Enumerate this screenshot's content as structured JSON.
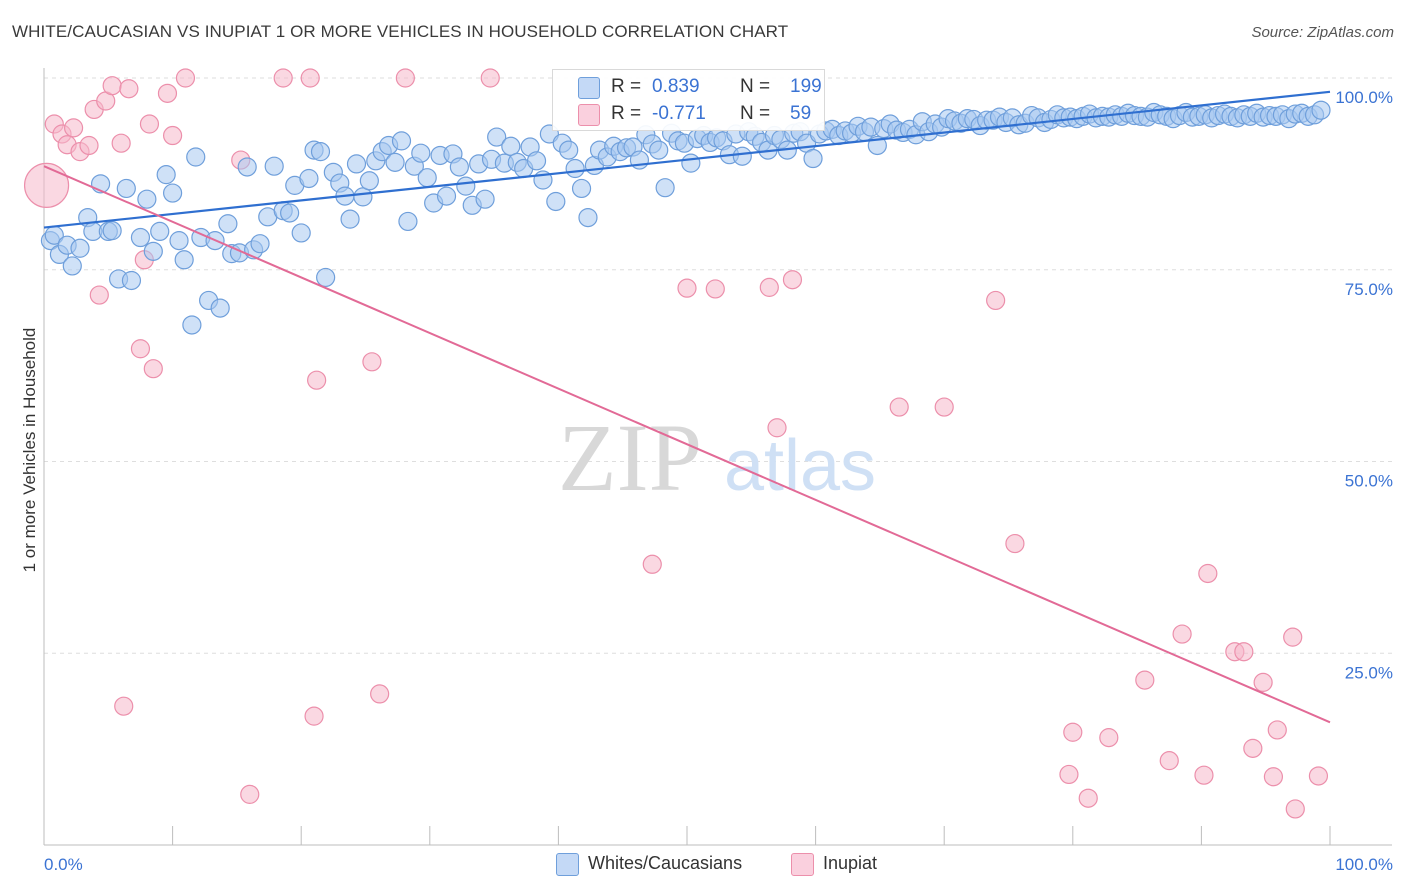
{
  "header": {
    "title": "WHITE/CAUCASIAN VS INUPIAT 1 OR MORE VEHICLES IN HOUSEHOLD CORRELATION CHART",
    "source": "Source: ZipAtlas.com"
  },
  "watermark": {
    "zip": "ZIP",
    "atlas": "atlas"
  },
  "legend": {
    "rows": [
      {
        "r_label": "R =",
        "r_value": "0.839",
        "n_label": "N =",
        "n_value": "199",
        "color": "#a8c8f0"
      },
      {
        "r_label": "R =",
        "r_value": "-0.771",
        "n_label": "N =",
        "n_value": "59",
        "color": "#f6b8cb"
      }
    ]
  },
  "bottom_legend": {
    "blue": "Whites/Caucasians",
    "pink": "Inupiat"
  },
  "chart_data": {
    "type": "scatter",
    "xlabel": "",
    "ylabel": "1 or more Vehicles in Household",
    "xlim": [
      0,
      100
    ],
    "ylim": [
      0,
      100
    ],
    "x_tick_labels": [
      {
        "value": 0,
        "label": "0.0%"
      },
      {
        "value": 100,
        "label": "100.0%"
      }
    ],
    "y_tick_labels": [
      {
        "value": 100,
        "label": "100.0%"
      },
      {
        "value": 75,
        "label": "75.0%"
      },
      {
        "value": 50,
        "label": "50.0%"
      },
      {
        "value": 25,
        "label": "25.0%"
      }
    ],
    "grid": true,
    "colors": {
      "blue_fill": "#a8c8f0",
      "blue_stroke": "#6f9fdb",
      "blue_line": "#2f6fd0",
      "pink_fill": "#f6b8cb",
      "pink_stroke": "#ec8fab",
      "pink_line": "#e26a96",
      "axis_label": "#3b73d3"
    },
    "series": [
      {
        "name": "Whites/Caucasians",
        "trend": {
          "x": [
            0,
            100
          ],
          "y": [
            80.5,
            98.2
          ]
        },
        "points": [
          [
            0.5,
            78.8
          ],
          [
            0.8,
            79.5
          ],
          [
            1.2,
            77.0
          ],
          [
            1.8,
            78.2
          ],
          [
            2.2,
            75.5
          ],
          [
            2.8,
            77.8
          ],
          [
            3.4,
            81.8
          ],
          [
            3.8,
            80.0
          ],
          [
            4.4,
            86.2
          ],
          [
            5.0,
            80.0
          ],
          [
            5.3,
            80.1
          ],
          [
            5.8,
            73.8
          ],
          [
            6.4,
            85.6
          ],
          [
            6.8,
            73.6
          ],
          [
            7.5,
            79.2
          ],
          [
            8.0,
            84.2
          ],
          [
            8.5,
            77.4
          ],
          [
            9.0,
            80.0
          ],
          [
            9.5,
            87.4
          ],
          [
            10.0,
            85.0
          ],
          [
            10.5,
            78.8
          ],
          [
            10.9,
            76.3
          ],
          [
            11.5,
            67.8
          ],
          [
            11.8,
            89.7
          ],
          [
            12.2,
            79.2
          ],
          [
            12.8,
            71.0
          ],
          [
            13.3,
            78.8
          ],
          [
            13.7,
            70.0
          ],
          [
            14.3,
            81.0
          ],
          [
            14.6,
            77.1
          ],
          [
            15.2,
            77.2
          ],
          [
            15.8,
            88.4
          ],
          [
            16.3,
            77.6
          ],
          [
            16.8,
            78.4
          ],
          [
            17.4,
            81.9
          ],
          [
            17.9,
            88.5
          ],
          [
            18.6,
            82.7
          ],
          [
            19.1,
            82.4
          ],
          [
            19.5,
            86.0
          ],
          [
            20.0,
            79.8
          ],
          [
            20.6,
            86.9
          ],
          [
            21.0,
            90.6
          ],
          [
            21.5,
            90.4
          ],
          [
            21.9,
            74.0
          ],
          [
            22.5,
            87.7
          ],
          [
            23.0,
            86.3
          ],
          [
            23.4,
            84.6
          ],
          [
            23.8,
            81.6
          ],
          [
            24.3,
            88.8
          ],
          [
            24.8,
            84.5
          ],
          [
            25.3,
            86.6
          ],
          [
            25.8,
            89.2
          ],
          [
            26.3,
            90.4
          ],
          [
            26.8,
            91.2
          ],
          [
            27.3,
            89.0
          ],
          [
            27.8,
            91.8
          ],
          [
            28.3,
            81.3
          ],
          [
            28.8,
            88.5
          ],
          [
            29.3,
            90.2
          ],
          [
            29.8,
            87.0
          ],
          [
            30.3,
            83.7
          ],
          [
            30.8,
            89.9
          ],
          [
            31.3,
            84.6
          ],
          [
            31.8,
            90.1
          ],
          [
            32.3,
            88.4
          ],
          [
            32.8,
            85.9
          ],
          [
            33.3,
            83.4
          ],
          [
            33.8,
            88.8
          ],
          [
            34.3,
            84.2
          ],
          [
            34.8,
            89.4
          ],
          [
            35.2,
            92.3
          ],
          [
            35.8,
            88.9
          ],
          [
            36.3,
            91.1
          ],
          [
            36.8,
            89.0
          ],
          [
            37.3,
            88.2
          ],
          [
            37.8,
            91.0
          ],
          [
            38.3,
            89.2
          ],
          [
            38.8,
            86.7
          ],
          [
            39.3,
            92.7
          ],
          [
            39.8,
            83.9
          ],
          [
            40.3,
            91.5
          ],
          [
            40.8,
            90.6
          ],
          [
            41.3,
            88.2
          ],
          [
            41.8,
            85.6
          ],
          [
            42.3,
            81.8
          ],
          [
            42.8,
            88.6
          ],
          [
            43.2,
            90.6
          ],
          [
            43.8,
            89.7
          ],
          [
            44.3,
            91.1
          ],
          [
            44.8,
            90.4
          ],
          [
            45.3,
            90.9
          ],
          [
            45.8,
            91.0
          ],
          [
            46.3,
            89.3
          ],
          [
            46.8,
            92.6
          ],
          [
            47.3,
            91.4
          ],
          [
            47.8,
            90.6
          ],
          [
            48.3,
            85.7
          ],
          [
            48.8,
            92.8
          ],
          [
            49.3,
            91.8
          ],
          [
            49.8,
            91.5
          ],
          [
            50.3,
            88.9
          ],
          [
            50.8,
            92.1
          ],
          [
            51.3,
            92.5
          ],
          [
            51.8,
            91.6
          ],
          [
            52.3,
            92.2
          ],
          [
            52.8,
            91.8
          ],
          [
            53.3,
            90.0
          ],
          [
            53.8,
            92.7
          ],
          [
            54.3,
            89.8
          ],
          [
            54.8,
            93.0
          ],
          [
            55.3,
            92.4
          ],
          [
            55.8,
            91.6
          ],
          [
            56.3,
            90.6
          ],
          [
            56.8,
            92.5
          ],
          [
            57.3,
            92.0
          ],
          [
            57.8,
            90.6
          ],
          [
            58.3,
            92.8
          ],
          [
            58.8,
            93.0
          ],
          [
            59.3,
            91.5
          ],
          [
            59.8,
            89.5
          ],
          [
            60.3,
            92.7
          ],
          [
            60.8,
            93.1
          ],
          [
            61.3,
            93.3
          ],
          [
            61.8,
            92.5
          ],
          [
            62.3,
            93.1
          ],
          [
            62.8,
            92.8
          ],
          [
            63.3,
            93.7
          ],
          [
            63.8,
            93.0
          ],
          [
            64.3,
            93.6
          ],
          [
            64.8,
            91.2
          ],
          [
            65.3,
            93.4
          ],
          [
            65.8,
            94.0
          ],
          [
            66.3,
            93.2
          ],
          [
            66.8,
            92.9
          ],
          [
            67.3,
            93.3
          ],
          [
            67.8,
            92.6
          ],
          [
            68.3,
            94.3
          ],
          [
            68.8,
            93.0
          ],
          [
            69.3,
            94.0
          ],
          [
            69.8,
            93.6
          ],
          [
            70.3,
            94.7
          ],
          [
            70.8,
            94.4
          ],
          [
            71.3,
            94.1
          ],
          [
            71.8,
            94.7
          ],
          [
            72.3,
            94.6
          ],
          [
            72.8,
            93.8
          ],
          [
            73.3,
            94.5
          ],
          [
            73.8,
            94.5
          ],
          [
            74.3,
            94.9
          ],
          [
            74.8,
            94.2
          ],
          [
            75.3,
            94.8
          ],
          [
            75.8,
            93.9
          ],
          [
            76.3,
            94.1
          ],
          [
            76.8,
            95.1
          ],
          [
            77.3,
            94.8
          ],
          [
            77.8,
            94.2
          ],
          [
            78.3,
            94.6
          ],
          [
            78.8,
            95.2
          ],
          [
            79.3,
            94.8
          ],
          [
            79.8,
            94.9
          ],
          [
            80.3,
            94.7
          ],
          [
            80.8,
            95.0
          ],
          [
            81.3,
            95.3
          ],
          [
            81.8,
            94.8
          ],
          [
            82.3,
            95.0
          ],
          [
            82.8,
            94.9
          ],
          [
            83.3,
            95.2
          ],
          [
            83.8,
            95.0
          ],
          [
            84.3,
            95.4
          ],
          [
            84.8,
            95.1
          ],
          [
            85.3,
            95.0
          ],
          [
            85.8,
            94.9
          ],
          [
            86.3,
            95.5
          ],
          [
            86.8,
            95.2
          ],
          [
            87.3,
            95.0
          ],
          [
            87.8,
            94.7
          ],
          [
            88.3,
            95.1
          ],
          [
            88.8,
            95.5
          ],
          [
            89.3,
            94.9
          ],
          [
            89.8,
            95.0
          ],
          [
            90.3,
            95.2
          ],
          [
            90.8,
            94.8
          ],
          [
            91.3,
            95.1
          ],
          [
            91.8,
            95.3
          ],
          [
            92.3,
            95.0
          ],
          [
            92.8,
            94.8
          ],
          [
            93.3,
            95.2
          ],
          [
            93.8,
            95.0
          ],
          [
            94.3,
            95.4
          ],
          [
            94.8,
            94.9
          ],
          [
            95.3,
            95.1
          ],
          [
            95.8,
            95.0
          ],
          [
            96.3,
            95.2
          ],
          [
            96.8,
            94.7
          ],
          [
            97.3,
            95.3
          ],
          [
            97.8,
            95.4
          ],
          [
            98.3,
            95.0
          ],
          [
            98.8,
            95.2
          ],
          [
            99.3,
            95.8
          ]
        ]
      },
      {
        "name": "Inupiat",
        "trend": {
          "x": [
            0,
            100
          ],
          "y": [
            88.5,
            16.0
          ]
        },
        "points": [
          [
            0.2,
            86.0,
            "large"
          ],
          [
            0.8,
            94.0
          ],
          [
            1.4,
            92.7
          ],
          [
            1.8,
            91.3
          ],
          [
            2.3,
            93.5
          ],
          [
            2.8,
            90.4
          ],
          [
            3.5,
            91.2
          ],
          [
            3.9,
            95.9
          ],
          [
            4.3,
            71.7
          ],
          [
            4.8,
            97.0
          ],
          [
            5.3,
            99.0
          ],
          [
            6.0,
            91.5
          ],
          [
            6.2,
            18.1
          ],
          [
            6.6,
            98.6
          ],
          [
            7.5,
            64.7
          ],
          [
            7.8,
            76.3
          ],
          [
            8.2,
            94.0
          ],
          [
            8.5,
            62.1
          ],
          [
            9.6,
            98.0
          ],
          [
            10.0,
            92.5
          ],
          [
            11.0,
            100.0
          ],
          [
            15.3,
            89.3
          ],
          [
            16.0,
            6.6
          ],
          [
            18.6,
            100.0
          ],
          [
            21.0,
            16.8
          ],
          [
            21.2,
            60.6
          ],
          [
            20.7,
            100.0
          ],
          [
            25.5,
            63.0
          ],
          [
            26.1,
            19.7
          ],
          [
            28.1,
            100.0
          ],
          [
            34.7,
            100.0
          ],
          [
            47.3,
            36.6
          ],
          [
            50.0,
            72.6
          ],
          [
            52.2,
            72.5
          ],
          [
            56.4,
            72.7
          ],
          [
            57.0,
            54.4
          ],
          [
            58.2,
            73.7
          ],
          [
            66.5,
            57.1
          ],
          [
            70.0,
            57.1
          ],
          [
            74.0,
            71.0
          ],
          [
            75.5,
            39.3
          ],
          [
            79.7,
            9.2
          ],
          [
            80.0,
            14.7
          ],
          [
            81.2,
            6.1
          ],
          [
            82.8,
            14.0
          ],
          [
            85.6,
            21.5
          ],
          [
            87.5,
            11.0
          ],
          [
            88.5,
            27.5
          ],
          [
            90.2,
            9.1
          ],
          [
            90.5,
            35.4
          ],
          [
            92.6,
            25.2
          ],
          [
            93.3,
            25.2
          ],
          [
            94.0,
            12.6
          ],
          [
            94.8,
            21.2
          ],
          [
            95.6,
            8.9
          ],
          [
            95.9,
            15.0
          ],
          [
            97.1,
            27.1
          ],
          [
            97.3,
            4.7
          ],
          [
            99.1,
            9.0
          ]
        ]
      }
    ]
  }
}
